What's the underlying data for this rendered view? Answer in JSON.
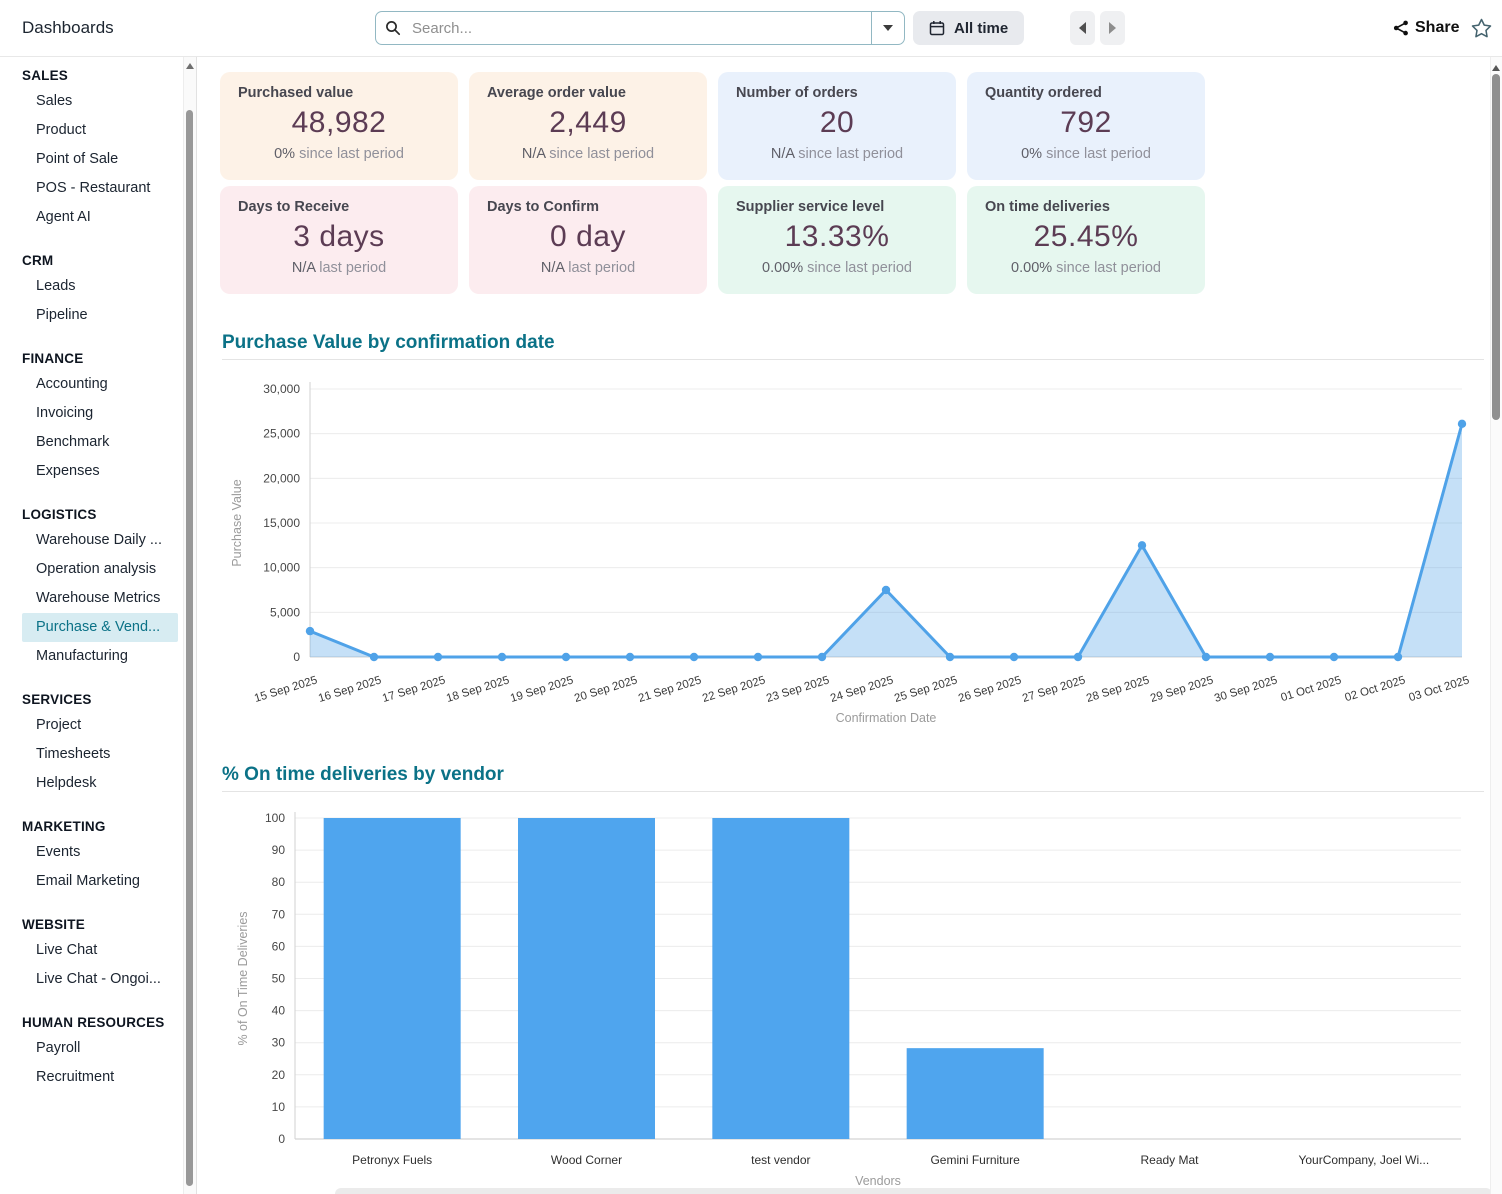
{
  "topbar": {
    "app_title": "Dashboards",
    "search_placeholder": "Search...",
    "filter_label": "All time",
    "share_label": "Share"
  },
  "sidebar": {
    "sections": [
      {
        "title": "SALES",
        "items": [
          {
            "label": "Sales"
          },
          {
            "label": "Product"
          },
          {
            "label": "Point of Sale"
          },
          {
            "label": "POS - Restaurant"
          },
          {
            "label": "Agent AI"
          }
        ]
      },
      {
        "title": "CRM",
        "items": [
          {
            "label": "Leads"
          },
          {
            "label": "Pipeline"
          }
        ]
      },
      {
        "title": "FINANCE",
        "items": [
          {
            "label": "Accounting"
          },
          {
            "label": "Invoicing"
          },
          {
            "label": "Benchmark"
          },
          {
            "label": "Expenses"
          }
        ]
      },
      {
        "title": "LOGISTICS",
        "items": [
          {
            "label": "Warehouse Daily ..."
          },
          {
            "label": "Operation analysis"
          },
          {
            "label": "Warehouse Metrics"
          },
          {
            "label": "Purchase & Vend...",
            "selected": true
          },
          {
            "label": "Manufacturing"
          }
        ]
      },
      {
        "title": "SERVICES",
        "items": [
          {
            "label": "Project"
          },
          {
            "label": "Timesheets"
          },
          {
            "label": "Helpdesk"
          }
        ]
      },
      {
        "title": "MARKETING",
        "items": [
          {
            "label": "Events"
          },
          {
            "label": "Email Marketing"
          }
        ]
      },
      {
        "title": "WEBSITE",
        "items": [
          {
            "label": "Live Chat"
          },
          {
            "label": "Live Chat - Ongoi..."
          }
        ]
      },
      {
        "title": "HUMAN RESOURCES",
        "items": [
          {
            "label": "Payroll"
          },
          {
            "label": "Recruitment"
          }
        ]
      }
    ]
  },
  "kpis": [
    {
      "title": "Purchased value",
      "value": "48,982",
      "delta": "0%",
      "delta_suffix": " since last period",
      "bg": "#fdf2e7"
    },
    {
      "title": "Average order value",
      "value": "2,449",
      "delta": "N/A",
      "delta_suffix": " since last period",
      "bg": "#fdf2e7"
    },
    {
      "title": "Number of orders",
      "value": "20",
      "delta": "N/A",
      "delta_suffix": " since last period",
      "bg": "#e9f1fc"
    },
    {
      "title": "Quantity ordered",
      "value": "792",
      "delta": "0%",
      "delta_suffix": " since last period",
      "bg": "#e9f1fc"
    },
    {
      "title": "Days to Receive",
      "value": "3 days",
      "delta": "N/A",
      "delta_suffix": " last period",
      "bg": "#fcecef"
    },
    {
      "title": "Days to Confirm",
      "value": "0 day",
      "delta": "N/A",
      "delta_suffix": " last period",
      "bg": "#fcecef"
    },
    {
      "title": "Supplier service level",
      "value": "13.33%",
      "delta": "0.00%",
      "delta_suffix": " since last period",
      "bg": "#e6f7ef"
    },
    {
      "title": "On time deliveries",
      "value": "25.45%",
      "delta": "0.00%",
      "delta_suffix": " since last period",
      "bg": "#e6f7ef"
    }
  ],
  "chart_data": [
    {
      "type": "area",
      "title": "Purchase Value by confirmation date",
      "x": [
        "15 Sep 2025",
        "16 Sep 2025",
        "17 Sep 2025",
        "18 Sep 2025",
        "19 Sep 2025",
        "20 Sep 2025",
        "21 Sep 2025",
        "22 Sep 2025",
        "23 Sep 2025",
        "24 Sep 2025",
        "25 Sep 2025",
        "26 Sep 2025",
        "27 Sep 2025",
        "28 Sep 2025",
        "29 Sep 2025",
        "30 Sep 2025",
        "01 Oct 2025",
        "02 Oct 2025",
        "03 Oct 2025"
      ],
      "values": [
        2900,
        0,
        0,
        0,
        0,
        0,
        0,
        0,
        0,
        7500,
        0,
        0,
        0,
        12500,
        0,
        0,
        0,
        0,
        26100
      ],
      "xlabel": "Confirmation Date",
      "ylabel": "Purchase Value",
      "ylim": [
        0,
        30000
      ],
      "ytick_step": 5000,
      "grid": true,
      "legend": "none",
      "line_color": "#4fa2e8",
      "fill_color": "rgba(79,162,232,0.33)"
    },
    {
      "type": "bar",
      "title": "% On time deliveries by vendor",
      "categories": [
        "Petronyx Fuels",
        "Wood Corner",
        "test vendor",
        "Gemini Furniture",
        "Ready Mat",
        "YourCompany, Joel Wi..."
      ],
      "values": [
        100,
        100,
        100,
        28.3,
        0,
        0
      ],
      "xlabel": "Vendors",
      "ylabel": "% of On Time Deliveries",
      "ylim": [
        0,
        100
      ],
      "ytick_step": 10,
      "grid": true,
      "legend": "none",
      "bar_color": "#4fa5ee"
    }
  ],
  "colors": {
    "accent_teal": "#0b7287",
    "kpi_number": "#5c3c54",
    "chart_blue": "#4fa2e8"
  }
}
